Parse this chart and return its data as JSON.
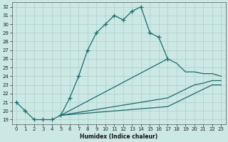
{
  "xlabel": "Humidex (Indice chaleur)",
  "xlim": [
    -0.5,
    23.5
  ],
  "ylim": [
    18.5,
    32.5
  ],
  "xticks": [
    0,
    1,
    2,
    3,
    4,
    5,
    6,
    7,
    8,
    9,
    10,
    11,
    12,
    13,
    14,
    15,
    16,
    17,
    18,
    19,
    20,
    21,
    22,
    23
  ],
  "yticks": [
    19,
    20,
    21,
    22,
    23,
    24,
    25,
    26,
    27,
    28,
    29,
    30,
    31,
    32
  ],
  "background_color": "#cce8e4",
  "grid_color": "#aacfca",
  "line_color": "#1a6b6b",
  "main_line_x": [
    0,
    1,
    2,
    3,
    4,
    5,
    6,
    7,
    8,
    9,
    10,
    11,
    12,
    13,
    14,
    15,
    16,
    17
  ],
  "main_line_y": [
    21.0,
    20.0,
    19.0,
    19.0,
    19.0,
    19.5,
    21.5,
    24.0,
    27.0,
    29.0,
    30.0,
    31.0,
    30.5,
    31.5,
    32.0,
    29.0,
    28.5,
    26.0
  ],
  "upper_line_x": [
    5,
    17,
    18,
    19,
    20,
    21,
    22,
    23
  ],
  "upper_line_y": [
    19.5,
    26.0,
    25.5,
    24.5,
    24.5,
    24.3,
    24.3,
    24.0
  ],
  "mid_line_x": [
    5,
    17,
    18,
    19,
    20,
    21,
    22,
    23
  ],
  "mid_line_y": [
    19.5,
    21.5,
    22.0,
    22.5,
    23.0,
    23.2,
    23.5,
    23.5
  ],
  "lower_line_x": [
    5,
    17,
    18,
    19,
    20,
    21,
    22,
    23
  ],
  "lower_line_y": [
    19.5,
    20.5,
    21.0,
    21.5,
    22.0,
    22.5,
    23.0,
    23.0
  ]
}
